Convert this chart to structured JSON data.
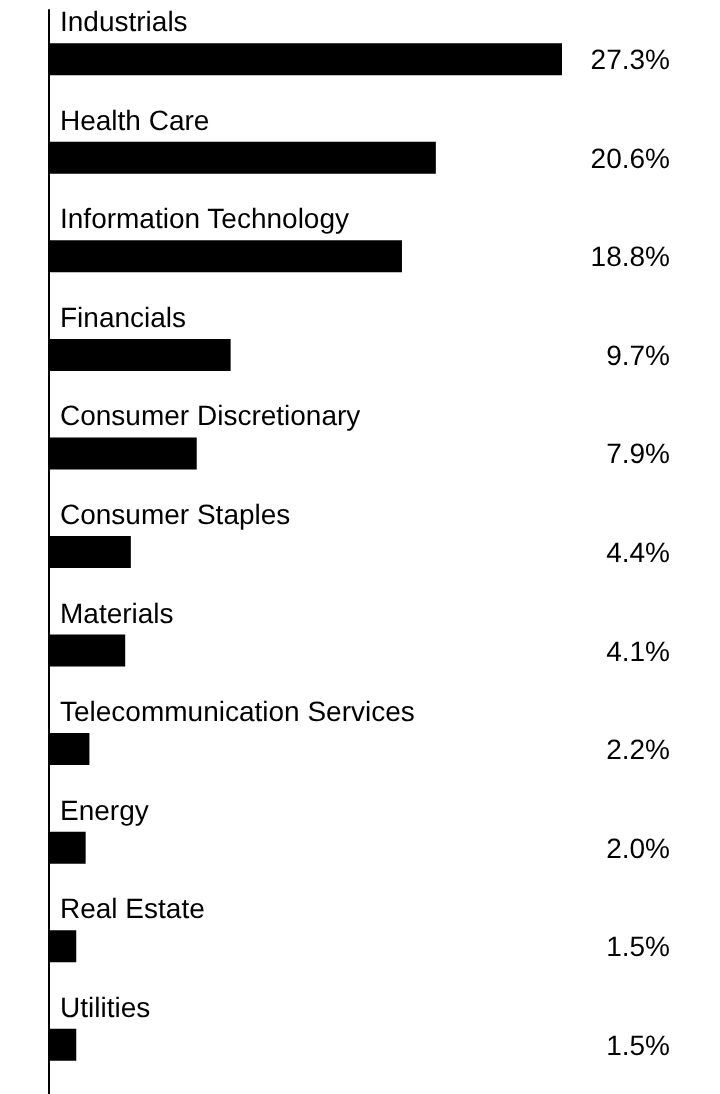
{
  "chart_data": {
    "type": "bar",
    "orientation": "horizontal",
    "color": "#000000",
    "categories": [
      "Industrials",
      "Health Care",
      "Information Technology",
      "Financials",
      "Consumer Discretionary",
      "Consumer Staples",
      "Materials",
      "Telecommunication Services",
      "Energy",
      "Real Estate",
      "Utilities"
    ],
    "values": [
      27.3,
      20.6,
      18.8,
      9.7,
      7.9,
      4.4,
      4.1,
      2.2,
      2.0,
      1.5,
      1.5
    ],
    "value_labels": [
      "27.3%",
      "20.6%",
      "18.8%",
      "9.7%",
      "7.9%",
      "4.4%",
      "4.1%",
      "2.2%",
      "2.0%",
      "1.5%",
      "1.5%"
    ]
  }
}
